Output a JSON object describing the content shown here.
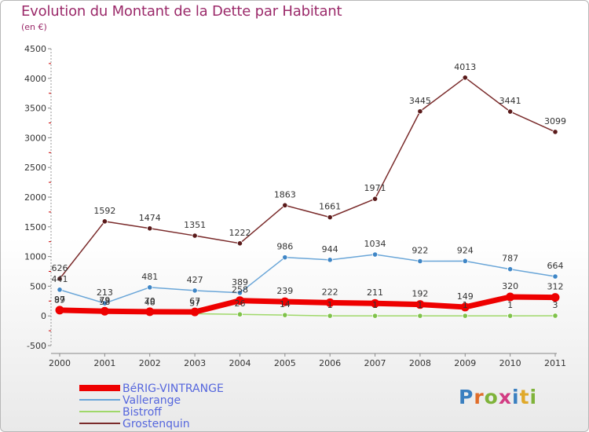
{
  "chart_data": {
    "type": "line",
    "title": "Evolution du Montant de la Dette par Habitant",
    "subtitle": "(en €)",
    "x": [
      "2000",
      "2001",
      "2002",
      "2003",
      "2004",
      "2005",
      "2006",
      "2007",
      "2008",
      "2009",
      "2010",
      "2011"
    ],
    "ylim": [
      -500,
      4500
    ],
    "yticks": [
      -500,
      0,
      500,
      1000,
      1500,
      2000,
      2500,
      3000,
      3500,
      4000,
      4500
    ],
    "ytick_labels": [
      "-500",
      "0",
      "500",
      "1000",
      "1500",
      "2000",
      "2500",
      "3000",
      "3500",
      "4000",
      "4500"
    ],
    "grid": false,
    "legend_position": "bottom-left",
    "series": [
      {
        "name": "BéRIG-VINTRANGE",
        "color": "#ee0000",
        "marker": "#ee0000",
        "values": [
          97,
          79,
          70,
          67,
          258,
          239,
          222,
          211,
          192,
          149,
          320,
          312
        ],
        "labels": [
          "97",
          "79",
          "70",
          "67",
          "258",
          "239",
          "222",
          "211",
          "192",
          "149",
          "320",
          "312"
        ]
      },
      {
        "name": "Vallerange",
        "color": "#6aa6d8",
        "marker": "#3f86c6",
        "values": [
          441,
          213,
          481,
          427,
          389,
          986,
          944,
          1034,
          922,
          924,
          787,
          664
        ],
        "labels": [
          "441",
          "213",
          "481",
          "427",
          "389",
          "986",
          "944",
          "1034",
          "922",
          "924",
          "787",
          "664"
        ]
      },
      {
        "name": "Bistroff",
        "color": "#9fd86a",
        "marker": "#7fc24a",
        "values": [
          89,
          58,
          48,
          37,
          26,
          14,
          1,
          1,
          1,
          1,
          1,
          3
        ],
        "labels": [
          "89",
          "58",
          "48",
          "37",
          "26",
          "14",
          "1",
          "1",
          "1",
          "1",
          "1",
          "3"
        ]
      },
      {
        "name": "Grostenquin",
        "color": "#7a2b2b",
        "marker": "#5a1a1a",
        "values": [
          626,
          1592,
          1474,
          1351,
          1222,
          1863,
          1661,
          1971,
          3445,
          4013,
          3441,
          3099
        ],
        "labels": [
          "626",
          "1592",
          "1474",
          "1351",
          "1222",
          "1863",
          "1661",
          "1971",
          "3445",
          "4013",
          "3441",
          "3099"
        ]
      }
    ]
  },
  "logo_text": "Proxiti"
}
